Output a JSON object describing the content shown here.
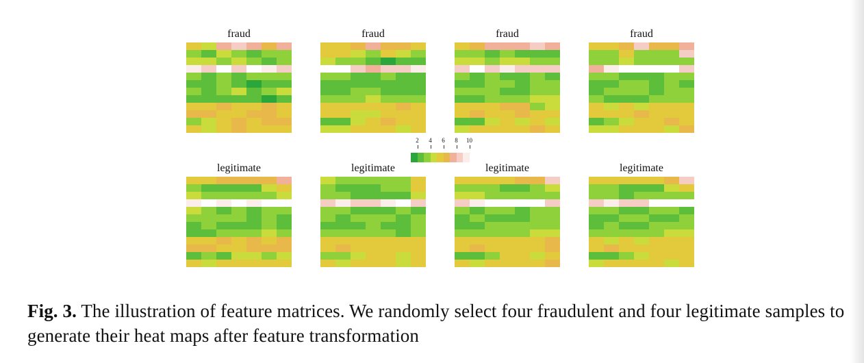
{
  "figure": {
    "panel_titles": [
      "fraud",
      "fraud",
      "fraud",
      "fraud",
      "legitimate",
      "legitimate",
      "legitimate",
      "legitimate"
    ],
    "colorbar": {
      "tick_labels": [
        "2",
        "4",
        "6",
        "8",
        "10"
      ],
      "tick_values": [
        2,
        4,
        6,
        8,
        10
      ],
      "range": [
        1,
        11
      ],
      "colors": [
        "#2aa63a",
        "#5cbe3a",
        "#8fd13b",
        "#c9dc3c",
        "#e3c93c",
        "#e9b84a",
        "#f0b09a",
        "#f5cdc4",
        "#fbeeea",
        "#ffffff"
      ]
    }
  },
  "caption": {
    "label": "Fig. 3.",
    "text": "The illustration of feature matrices. We randomly select four fraudulent and four legitimate samples to generate their heat maps after feature transformation"
  },
  "chart_data": {
    "type": "heatmap",
    "rows": 12,
    "cols": 7,
    "value_range": [
      1,
      11
    ],
    "panels": [
      {
        "title": "fraud",
        "values": [
          [
            5,
            4,
            7,
            8,
            7,
            6,
            7
          ],
          [
            3,
            2,
            4,
            3,
            2,
            3,
            3
          ],
          [
            4,
            4,
            3,
            4,
            3,
            2,
            3
          ],
          [
            9,
            8,
            10,
            8,
            10,
            9,
            8
          ],
          [
            3,
            2,
            3,
            2,
            3,
            3,
            3
          ],
          [
            2,
            2,
            3,
            2,
            1,
            2,
            2
          ],
          [
            3,
            2,
            3,
            4,
            2,
            3,
            4
          ],
          [
            2,
            2,
            2,
            2,
            2,
            1,
            2
          ],
          [
            5,
            5,
            6,
            5,
            5,
            6,
            5
          ],
          [
            6,
            6,
            5,
            5,
            6,
            6,
            5
          ],
          [
            3,
            4,
            5,
            6,
            5,
            6,
            6
          ],
          [
            5,
            4,
            5,
            6,
            5,
            5,
            5
          ]
        ]
      },
      {
        "title": "fraud",
        "values": [
          [
            5,
            5,
            6,
            7,
            6,
            6,
            5
          ],
          [
            5,
            5,
            4,
            3,
            5,
            4,
            3
          ],
          [
            4,
            3,
            3,
            2,
            1,
            2,
            2
          ],
          [
            10,
            10,
            8,
            7,
            8,
            8,
            9
          ],
          [
            3,
            3,
            2,
            2,
            3,
            2,
            2
          ],
          [
            2,
            2,
            2,
            2,
            2,
            2,
            2
          ],
          [
            2,
            2,
            3,
            3,
            2,
            2,
            2
          ],
          [
            3,
            3,
            3,
            4,
            3,
            3,
            3
          ],
          [
            5,
            5,
            5,
            5,
            5,
            6,
            5
          ],
          [
            5,
            5,
            4,
            4,
            5,
            5,
            5
          ],
          [
            2,
            2,
            4,
            5,
            6,
            5,
            5
          ],
          [
            4,
            4,
            5,
            5,
            5,
            4,
            5
          ]
        ]
      },
      {
        "title": "fraud",
        "values": [
          [
            5,
            6,
            7,
            7,
            7,
            8,
            7
          ],
          [
            3,
            3,
            2,
            3,
            2,
            2,
            2
          ],
          [
            4,
            4,
            3,
            4,
            4,
            3,
            3
          ],
          [
            8,
            10,
            8,
            9,
            8,
            8,
            8
          ],
          [
            3,
            2,
            3,
            2,
            2,
            3,
            2
          ],
          [
            2,
            2,
            3,
            3,
            2,
            3,
            3
          ],
          [
            3,
            3,
            3,
            2,
            2,
            3,
            3
          ],
          [
            2,
            2,
            3,
            3,
            3,
            4,
            4
          ],
          [
            5,
            5,
            5,
            6,
            6,
            3,
            4
          ],
          [
            5,
            6,
            5,
            5,
            6,
            5,
            5
          ],
          [
            2,
            2,
            4,
            5,
            4,
            5,
            4
          ],
          [
            4,
            5,
            5,
            5,
            5,
            6,
            5
          ]
        ]
      },
      {
        "title": "fraud",
        "values": [
          [
            5,
            5,
            6,
            8,
            6,
            6,
            7
          ],
          [
            3,
            3,
            5,
            3,
            3,
            3,
            8
          ],
          [
            3,
            3,
            4,
            3,
            3,
            3,
            3
          ],
          [
            7,
            9,
            10,
            10,
            10,
            10,
            8
          ],
          [
            3,
            3,
            2,
            2,
            2,
            3,
            3
          ],
          [
            2,
            2,
            3,
            3,
            2,
            3,
            2
          ],
          [
            2,
            3,
            3,
            3,
            2,
            3,
            3
          ],
          [
            3,
            2,
            2,
            2,
            3,
            3,
            3
          ],
          [
            5,
            4,
            5,
            4,
            5,
            5,
            5
          ],
          [
            5,
            5,
            5,
            6,
            5,
            5,
            5
          ],
          [
            2,
            3,
            4,
            5,
            5,
            6,
            5
          ],
          [
            4,
            4,
            5,
            5,
            5,
            4,
            6
          ]
        ]
      },
      {
        "title": "legitimate",
        "values": [
          [
            5,
            5,
            6,
            6,
            6,
            6,
            7
          ],
          [
            3,
            2,
            2,
            2,
            2,
            4,
            5
          ],
          [
            4,
            3,
            3,
            3,
            3,
            3,
            4
          ],
          [
            9,
            10,
            9,
            10,
            9,
            10,
            10
          ],
          [
            4,
            3,
            2,
            3,
            2,
            3,
            3
          ],
          [
            3,
            3,
            3,
            3,
            2,
            3,
            2
          ],
          [
            2,
            3,
            2,
            2,
            2,
            3,
            2
          ],
          [
            2,
            2,
            3,
            3,
            3,
            4,
            3
          ],
          [
            5,
            5,
            6,
            5,
            6,
            5,
            6
          ],
          [
            6,
            6,
            5,
            5,
            6,
            6,
            6
          ],
          [
            2,
            3,
            2,
            4,
            4,
            3,
            4
          ],
          [
            5,
            4,
            5,
            5,
            5,
            5,
            5
          ]
        ]
      },
      {
        "title": "legitimate",
        "values": [
          [
            4,
            3,
            3,
            3,
            3,
            3,
            5
          ],
          [
            3,
            2,
            2,
            2,
            3,
            3,
            5
          ],
          [
            3,
            3,
            2,
            2,
            2,
            2,
            4
          ],
          [
            8,
            9,
            8,
            8,
            9,
            10,
            8
          ],
          [
            3,
            3,
            2,
            2,
            2,
            3,
            2
          ],
          [
            3,
            2,
            3,
            3,
            3,
            2,
            3
          ],
          [
            2,
            2,
            2,
            3,
            2,
            2,
            3
          ],
          [
            3,
            3,
            3,
            3,
            3,
            2,
            3
          ],
          [
            5,
            5,
            5,
            5,
            5,
            5,
            5
          ],
          [
            5,
            6,
            5,
            5,
            5,
            5,
            5
          ],
          [
            3,
            3,
            4,
            5,
            5,
            4,
            5
          ],
          [
            5,
            4,
            5,
            5,
            5,
            4,
            5
          ]
        ]
      },
      {
        "title": "legitimate",
        "values": [
          [
            5,
            5,
            5,
            5,
            6,
            6,
            8
          ],
          [
            3,
            3,
            3,
            2,
            2,
            3,
            4
          ],
          [
            4,
            4,
            3,
            3,
            3,
            3,
            3
          ],
          [
            8,
            9,
            10,
            10,
            10,
            10,
            8
          ],
          [
            3,
            2,
            3,
            3,
            2,
            3,
            3
          ],
          [
            2,
            3,
            2,
            2,
            2,
            3,
            3
          ],
          [
            2,
            2,
            3,
            3,
            3,
            3,
            3
          ],
          [
            3,
            3,
            3,
            3,
            3,
            4,
            4
          ],
          [
            5,
            5,
            5,
            5,
            5,
            5,
            6
          ],
          [
            5,
            6,
            5,
            5,
            5,
            5,
            6
          ],
          [
            2,
            2,
            3,
            5,
            5,
            4,
            5
          ],
          [
            5,
            4,
            5,
            5,
            5,
            5,
            6
          ]
        ]
      },
      {
        "title": "legitimate",
        "values": [
          [
            5,
            5,
            5,
            5,
            5,
            6,
            8
          ],
          [
            3,
            3,
            2,
            2,
            2,
            4,
            5
          ],
          [
            3,
            3,
            2,
            3,
            3,
            3,
            3
          ],
          [
            8,
            9,
            8,
            8,
            10,
            10,
            10
          ],
          [
            3,
            3,
            2,
            2,
            3,
            3,
            2
          ],
          [
            2,
            2,
            3,
            3,
            2,
            2,
            3
          ],
          [
            2,
            3,
            2,
            2,
            3,
            3,
            3
          ],
          [
            3,
            3,
            3,
            3,
            3,
            4,
            4
          ],
          [
            5,
            4,
            5,
            4,
            5,
            5,
            5
          ],
          [
            5,
            6,
            5,
            5,
            5,
            5,
            5
          ],
          [
            2,
            2,
            3,
            4,
            5,
            5,
            5
          ],
          [
            4,
            5,
            5,
            5,
            5,
            4,
            5
          ]
        ]
      }
    ]
  }
}
